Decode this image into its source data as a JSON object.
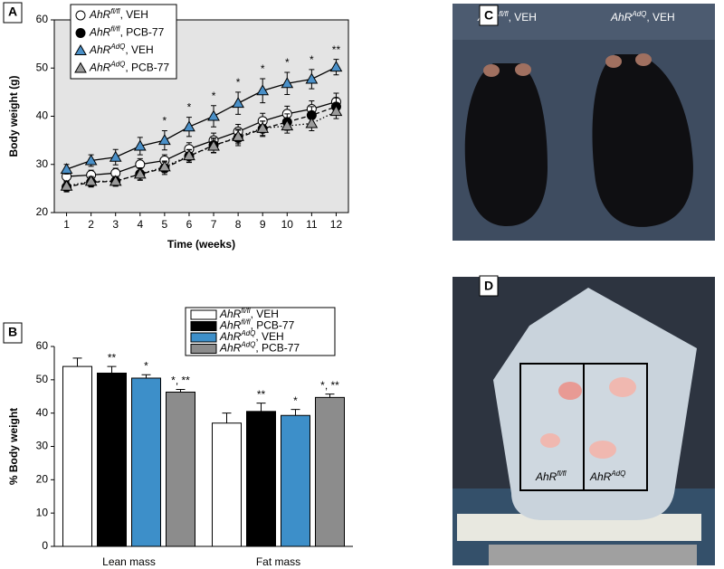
{
  "chart_data": [
    {
      "type": "line",
      "panel": "A",
      "ylabel": "Body weight (g)",
      "xlabel": "Time (weeks)",
      "x": [
        1,
        2,
        3,
        4,
        5,
        6,
        7,
        8,
        9,
        10,
        11,
        12
      ],
      "xlim": [
        0.5,
        12.5
      ],
      "xticks": [
        1,
        2,
        3,
        4,
        5,
        6,
        7,
        8,
        9,
        10,
        11,
        12
      ],
      "ylim": [
        20,
        60
      ],
      "yticks": [
        20,
        30,
        40,
        50,
        60
      ],
      "background": "#e4e4e4",
      "series": [
        {
          "name": "AhRfl/fl, VEH",
          "color": "#000000",
          "marker": "circle",
          "marker_fill": "#ffffff",
          "linestyle": "solid",
          "values": [
            27.5,
            27.8,
            28.2,
            30,
            30.8,
            33.2,
            35,
            36.8,
            39,
            40.5,
            41.5,
            43
          ],
          "errors": [
            1,
            1,
            1,
            1.2,
            1.2,
            1.3,
            1.5,
            1.5,
            1.6,
            1.6,
            1.7,
            1.8
          ]
        },
        {
          "name": "AhRfl/fl, PCB-77",
          "color": "#000000",
          "marker": "circle",
          "marker_fill": "#000000",
          "linestyle": "dashed",
          "values": [
            25.3,
            26.3,
            26.5,
            28,
            29.2,
            31.7,
            34,
            35.5,
            37.4,
            38.8,
            40.2,
            42
          ],
          "errors": [
            1,
            1,
            1,
            1.3,
            1.3,
            1.3,
            1.5,
            1.6,
            1.6,
            1.7,
            1.8,
            1.8
          ]
        },
        {
          "name": "AhRAdQ, VEH",
          "color": "#000000",
          "marker": "triangle",
          "marker_fill": "#4a90c8",
          "linestyle": "solid",
          "values": [
            29,
            30.8,
            31.5,
            33.8,
            35,
            37.8,
            40,
            42.7,
            45.3,
            46.8,
            47.7,
            50.2
          ],
          "errors": [
            1,
            1.2,
            1.6,
            1.8,
            2,
            2,
            2.2,
            2.3,
            2.5,
            2.3,
            2,
            1.6
          ]
        },
        {
          "name": "AhRAdQ, PCB-77",
          "color": "#000000",
          "marker": "triangle",
          "marker_fill": "#9a9a9a",
          "linestyle": "dotted",
          "values": [
            25.5,
            26.5,
            26.5,
            28,
            29.5,
            31.8,
            33.8,
            35.8,
            37.5,
            38,
            38.5,
            41
          ],
          "errors": [
            1,
            1,
            1,
            1.2,
            1.2,
            1.3,
            1.4,
            1.5,
            1.5,
            1.5,
            1.5,
            1.5
          ]
        }
      ],
      "annotations": [
        {
          "x": 5,
          "text": "*"
        },
        {
          "x": 6,
          "text": "*"
        },
        {
          "x": 7,
          "text": "*"
        },
        {
          "x": 8,
          "text": "*"
        },
        {
          "x": 9,
          "text": "*"
        },
        {
          "x": 10,
          "text": "*"
        },
        {
          "x": 11,
          "text": "*"
        },
        {
          "x": 12,
          "text": "**"
        }
      ]
    },
    {
      "type": "bar",
      "panel": "B",
      "ylabel": "% Body weight",
      "categories": [
        "Lean mass",
        "Fat mass"
      ],
      "ylim": [
        0,
        60
      ],
      "yticks": [
        0,
        10,
        20,
        30,
        40,
        50,
        60
      ],
      "series": [
        {
          "name": "AhRfl/fl, VEH",
          "color": "#ffffff",
          "values": [
            54,
            37
          ],
          "errors": [
            2.5,
            3
          ],
          "annotations": [
            null,
            null
          ]
        },
        {
          "name": "AhRfl/fl, PCB-77",
          "color": "#000000",
          "values": [
            52,
            40.5
          ],
          "errors": [
            2,
            2.5
          ],
          "annotations": [
            "**",
            "**"
          ]
        },
        {
          "name": "AhRAdQ, VEH",
          "color": "#3d8fc9",
          "values": [
            50.5,
            39.3
          ],
          "errors": [
            1,
            1.8
          ],
          "annotations": [
            "*",
            "*"
          ]
        },
        {
          "name": "AhRAdQ, PCB-77",
          "color": "#8c8c8c",
          "values": [
            46.3,
            44.7
          ],
          "errors": [
            0.8,
            1
          ],
          "annotations": [
            "*, **",
            "*, **"
          ]
        }
      ]
    }
  ],
  "photos": [
    {
      "panel": "C",
      "captions": [
        "AhRfl/fl, VEH",
        "AhRAdQ, VEH"
      ]
    },
    {
      "panel": "D",
      "captions": [
        "AhRfl/fl",
        "AhRAdQ"
      ]
    }
  ]
}
